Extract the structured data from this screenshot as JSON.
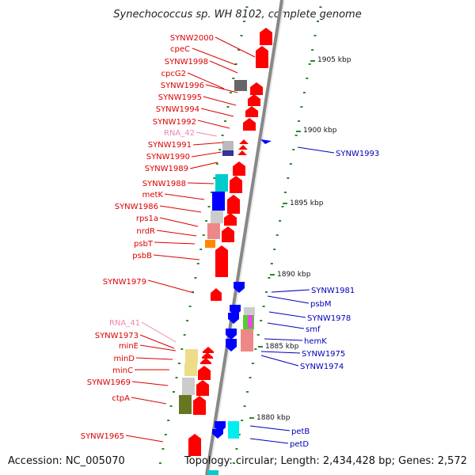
{
  "title": "Synechococcus sp. WH 8102, complete genome",
  "footer": {
    "accession": "Accession: NC_005070",
    "topology": "Topology: circular; Length: 2,434,428 bp; Genes: 2,572"
  },
  "colors": {
    "backbone": "#888888",
    "left_label": "#dd0000",
    "rna_label": "#ee88aa",
    "right_label": "#0000bb",
    "tick": "#2a8a2a"
  },
  "kbp_marks": [
    "1905 kbp",
    "1900 kbp",
    "1895 kbp",
    "1890 kbp",
    "1885 kbp",
    "1880 kbp"
  ],
  "left_labels": [
    "SYNW2000",
    "cpeC",
    "SYNW1998",
    "cpcG2",
    "SYNW1996",
    "SYNW1995",
    "SYNW1994",
    "SYNW1992",
    "RNA_42",
    "SYNW1991",
    "SYNW1990",
    "SYNW1989",
    "SYNW1988",
    "metK",
    "SYNW1986",
    "rps1a",
    "nrdR",
    "psbT",
    "psbB",
    "SYNW1979",
    "RNA_41",
    "SYNW1973",
    "minE",
    "minD",
    "minC",
    "SYNW1969",
    "ctpA",
    "SYNW1965"
  ],
  "right_labels": [
    "SYNW1993",
    "SYNW1981",
    "psbM",
    "SYNW1978",
    "smf",
    "hemK",
    "SYNW1975",
    "SYNW1974",
    "petB",
    "petD"
  ]
}
